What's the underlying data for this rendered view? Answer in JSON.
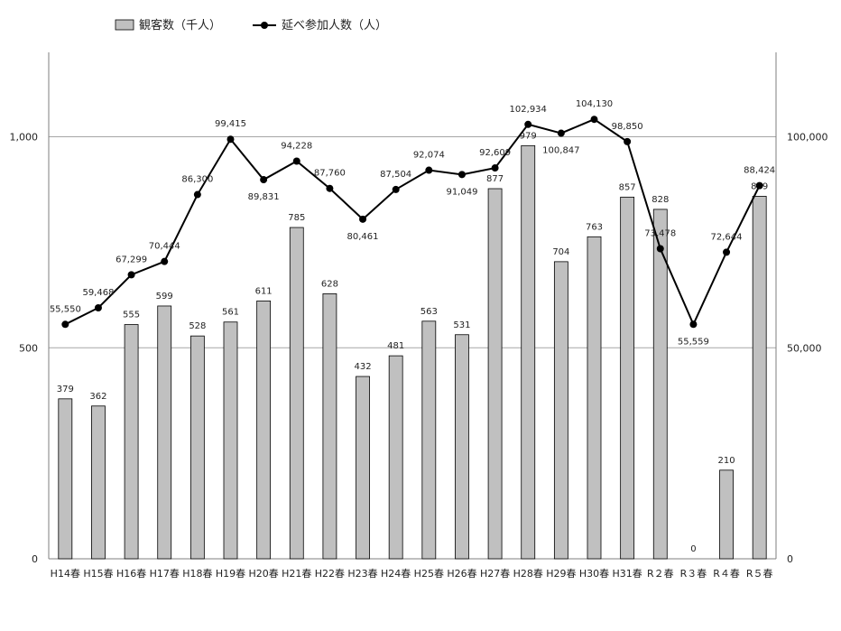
{
  "chart_data": {
    "type": "bar",
    "categories": [
      "H14春",
      "H15春",
      "H16春",
      "H17春",
      "H18春",
      "H19春",
      "H20春",
      "H21春",
      "H22春",
      "H23春",
      "H24春",
      "H25春",
      "H26春",
      "H27春",
      "H28春",
      "H29春",
      "H30春",
      "H31春",
      "R２春",
      "R３春",
      "R４春",
      "R５春"
    ],
    "series": [
      {
        "name": "観客数（千人）",
        "type": "bar",
        "axis": "left",
        "values": [
          379,
          362,
          555,
          599,
          528,
          561,
          611,
          785,
          628,
          432,
          481,
          563,
          531,
          877,
          979,
          704,
          763,
          857,
          828,
          0,
          210,
          859
        ],
        "labels": [
          "379",
          "362",
          "555",
          "599",
          "528",
          "561",
          "611",
          "785",
          "628",
          "432",
          "481",
          "563",
          "531",
          "877",
          "979",
          "704",
          "763",
          "857",
          "828",
          "0",
          "210",
          "859"
        ]
      },
      {
        "name": "延べ参加人数（人）",
        "type": "line",
        "axis": "right",
        "values": [
          55550,
          59468,
          67299,
          70444,
          86300,
          99415,
          89831,
          94228,
          87760,
          80461,
          87504,
          92074,
          91049,
          92609,
          102934,
          100847,
          104130,
          98850,
          73478,
          55559,
          72644,
          88424
        ],
        "labels": [
          "55,550",
          "59,468",
          "67,299",
          "70,444",
          "86,300",
          "99,415",
          "89,831",
          "94,228",
          "87,760",
          "80,461",
          "87,504",
          "92,074",
          "91,049",
          "92,609",
          "102,934",
          "100,847",
          "104,130",
          "98,850",
          "73,478",
          "55,559",
          "72,644",
          "88,424"
        ]
      }
    ],
    "y_left": {
      "ylim": [
        0,
        1200
      ],
      "ticks": [
        0,
        500,
        1000
      ],
      "tick_labels": [
        "0",
        "500",
        "1,000"
      ]
    },
    "y_right": {
      "ylim": [
        0,
        120000
      ],
      "ticks": [
        0,
        50000,
        100000
      ],
      "tick_labels": [
        "0",
        "50,000",
        "100,000"
      ]
    },
    "grid": true,
    "legend": "top-left",
    "colors": {
      "bar_fill": "#c0c0c0",
      "bar_stroke": "#000000",
      "line": "#000000",
      "grid": "#a6a6a6"
    }
  }
}
